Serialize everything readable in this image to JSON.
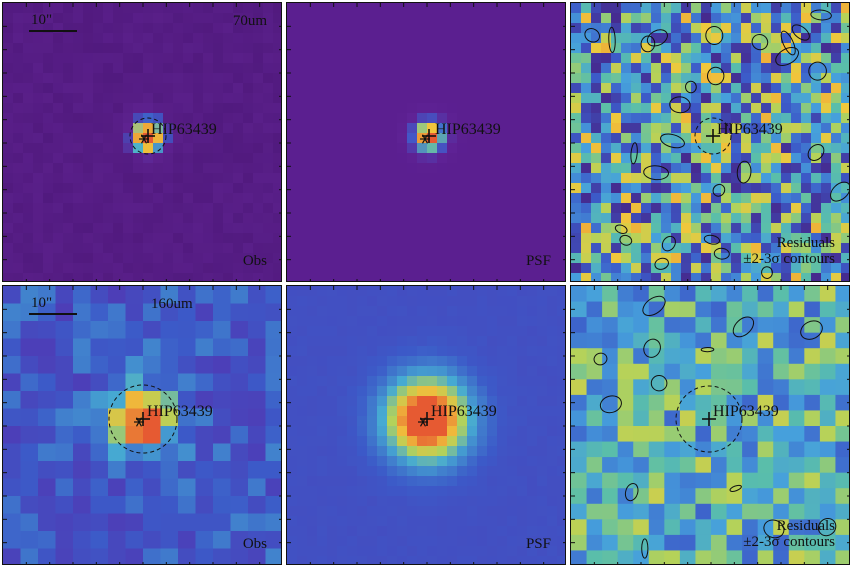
{
  "source_name": "HIP63439",
  "scale_bar": "10\"",
  "rows": [
    {
      "band": "70um",
      "panels": [
        {
          "kind": "obs",
          "label": "Obs",
          "colormap": "purple-obs"
        },
        {
          "kind": "psf",
          "label": "PSF",
          "colormap": "purple-psf"
        },
        {
          "kind": "residual",
          "label_line1": "Residuals",
          "label_line2": "±2-3σ contours",
          "colormap": "viridis-like"
        }
      ]
    },
    {
      "band": "160um",
      "panels": [
        {
          "kind": "obs",
          "label": "Obs",
          "colormap": "blue-obs"
        },
        {
          "kind": "psf",
          "label": "PSF",
          "colormap": "blue-psf"
        },
        {
          "kind": "residual",
          "label_line1": "Residuals",
          "label_line2": "±2-3σ contours",
          "colormap": "viridis-like"
        }
      ]
    }
  ],
  "colors": {
    "purple_bg": "#5b1f8a",
    "blue_bg": "#3c5bc0",
    "hot": "#e8623a",
    "warm": "#f2c23a",
    "contour": "#111111"
  }
}
